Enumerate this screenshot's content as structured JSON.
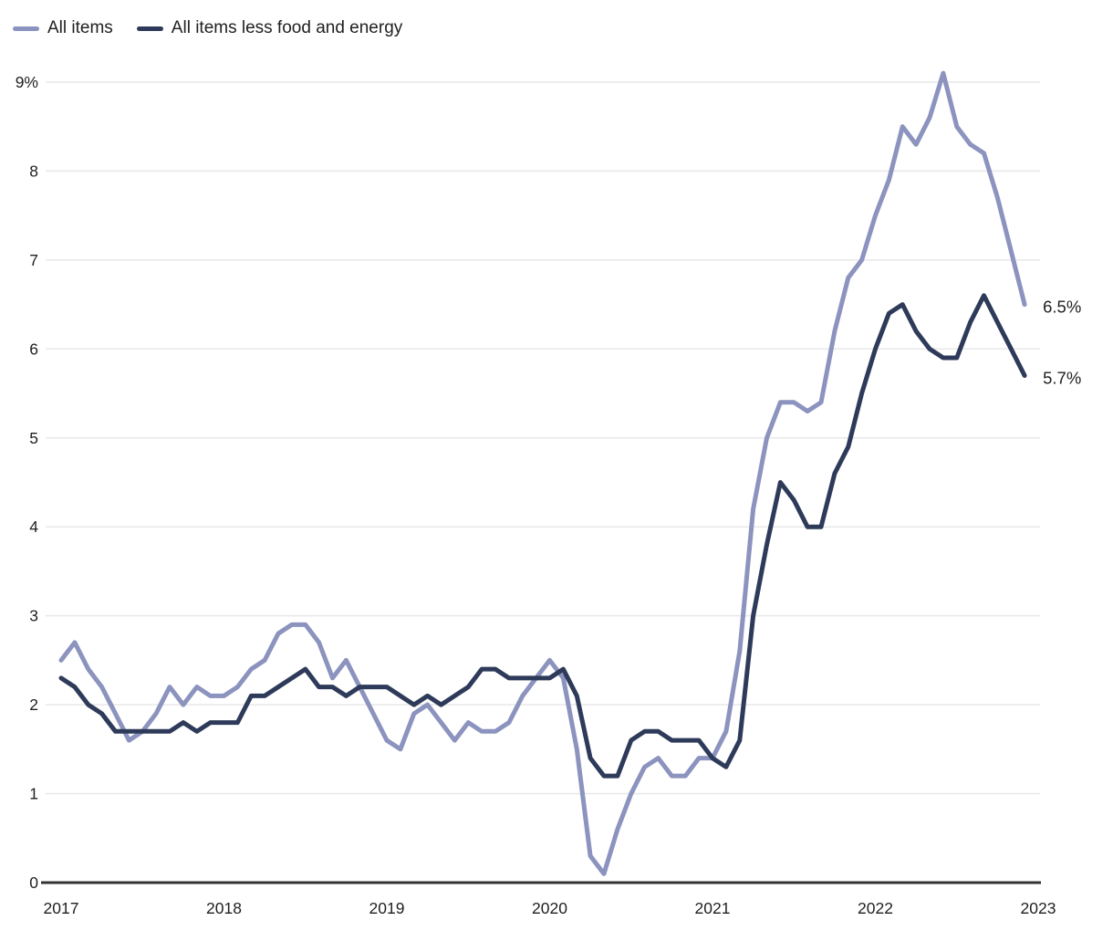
{
  "colors": {
    "background": "#FFFFFF",
    "all_items_line": "#8B93BE",
    "core_line": "#2E3A59",
    "gridline": "#E8E8E8",
    "axis_line": "#333333",
    "label_text": "#1F1F1F"
  },
  "legend": {
    "items": [
      {
        "label": "All items"
      },
      {
        "label": "All items less food and energy"
      }
    ]
  },
  "end_labels": {
    "all_items": "6.5%",
    "core": "5.7%"
  },
  "chart_data": {
    "type": "line",
    "title": "",
    "x_start": "2017-01",
    "x_end": "2022-12",
    "frequency": "monthly",
    "x_tick_labels": [
      "2017",
      "2018",
      "2019",
      "2020",
      "2021",
      "2022",
      "2023"
    ],
    "y_tick_values": [
      0,
      1,
      2,
      3,
      4,
      5,
      6,
      7,
      8,
      9
    ],
    "y_tick_labels": [
      "0",
      "1",
      "2",
      "3",
      "4",
      "5",
      "6",
      "7",
      "8",
      "9%"
    ],
    "ylim": [
      0,
      9.4
    ],
    "grid": "horizontal",
    "legend_position": "top-left",
    "series": [
      {
        "name": "All items",
        "color": "#8B93BE",
        "end_label": "6.5%",
        "values": [
          2.5,
          2.7,
          2.4,
          2.2,
          1.9,
          1.6,
          1.7,
          1.9,
          2.2,
          2.0,
          2.2,
          2.1,
          2.1,
          2.2,
          2.4,
          2.5,
          2.8,
          2.9,
          2.9,
          2.7,
          2.3,
          2.5,
          2.2,
          1.9,
          1.6,
          1.5,
          1.9,
          2.0,
          1.8,
          1.6,
          1.8,
          1.7,
          1.7,
          1.8,
          2.1,
          2.3,
          2.5,
          2.3,
          1.5,
          0.3,
          0.1,
          0.6,
          1.0,
          1.3,
          1.4,
          1.2,
          1.2,
          1.4,
          1.4,
          1.7,
          2.6,
          4.2,
          5.0,
          5.4,
          5.4,
          5.3,
          5.4,
          6.2,
          6.8,
          7.0,
          7.5,
          7.9,
          8.5,
          8.3,
          8.6,
          9.1,
          8.5,
          8.3,
          8.2,
          7.7,
          7.1,
          6.5
        ]
      },
      {
        "name": "All items less food and energy",
        "color": "#2E3A59",
        "end_label": "5.7%",
        "values": [
          2.3,
          2.2,
          2.0,
          1.9,
          1.7,
          1.7,
          1.7,
          1.7,
          1.7,
          1.8,
          1.7,
          1.8,
          1.8,
          1.8,
          2.1,
          2.1,
          2.2,
          2.3,
          2.4,
          2.2,
          2.2,
          2.1,
          2.2,
          2.2,
          2.2,
          2.1,
          2.0,
          2.1,
          2.0,
          2.1,
          2.2,
          2.4,
          2.4,
          2.3,
          2.3,
          2.3,
          2.3,
          2.4,
          2.1,
          1.4,
          1.2,
          1.2,
          1.6,
          1.7,
          1.7,
          1.6,
          1.6,
          1.6,
          1.4,
          1.3,
          1.6,
          3.0,
          3.8,
          4.5,
          4.3,
          4.0,
          4.0,
          4.6,
          4.9,
          5.5,
          6.0,
          6.4,
          6.5,
          6.2,
          6.0,
          5.9,
          5.9,
          6.3,
          6.6,
          6.3,
          6.0,
          5.7
        ]
      }
    ]
  }
}
